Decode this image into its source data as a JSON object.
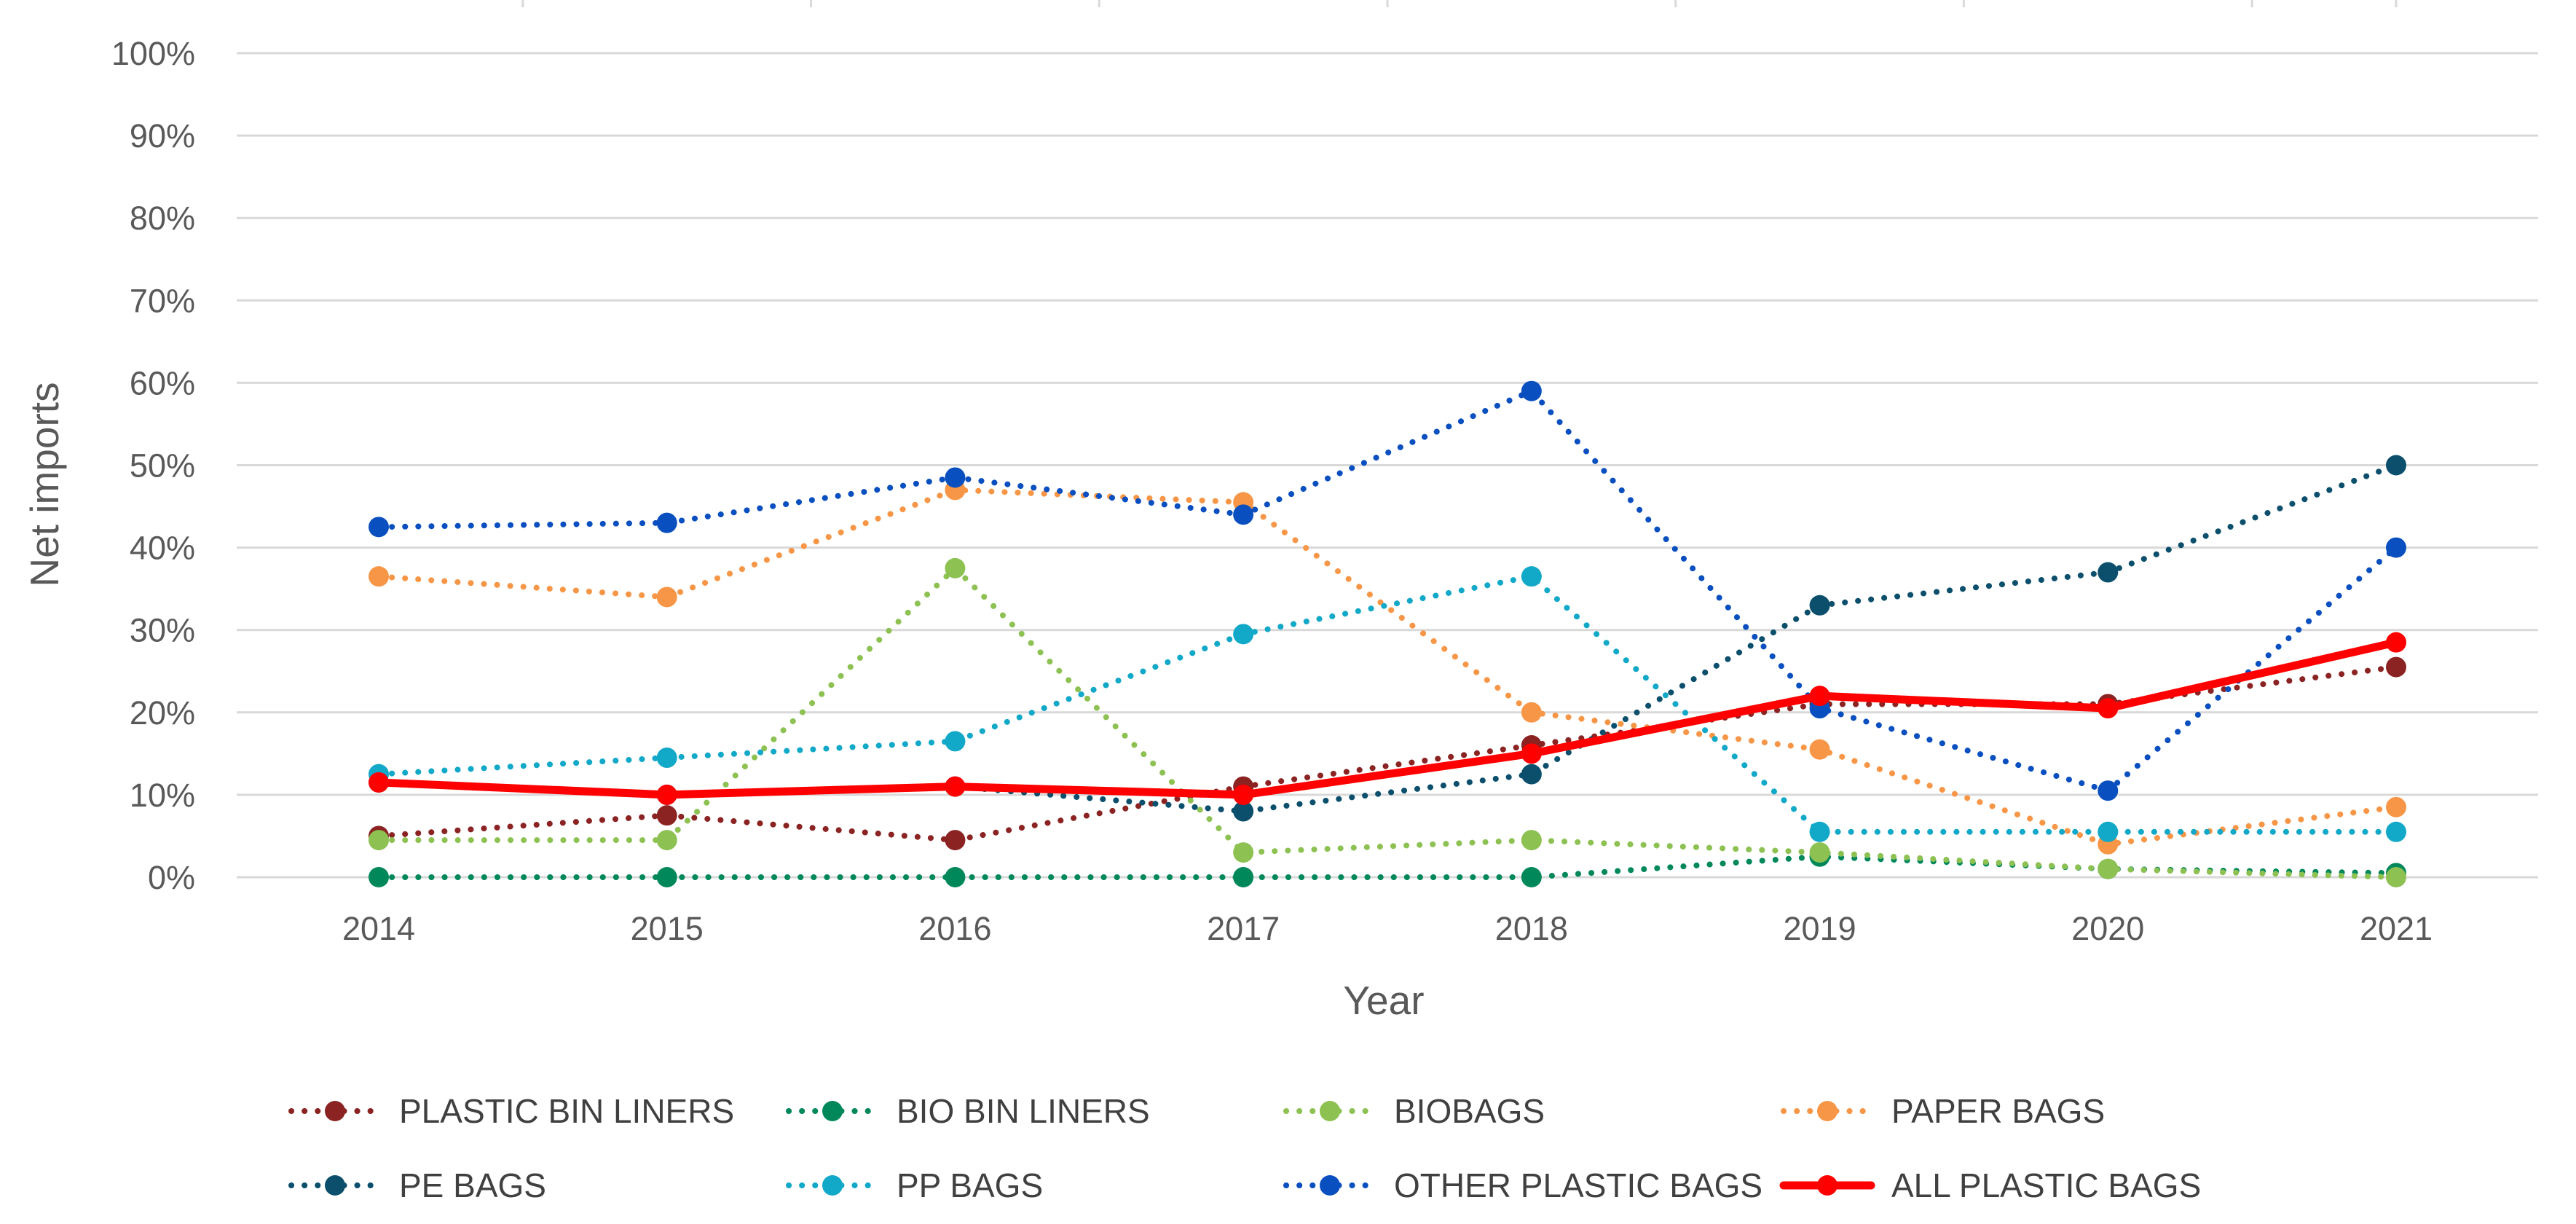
{
  "chart_data": {
    "type": "line",
    "title": "",
    "xlabel": "Year",
    "ylabel": "Net imports",
    "x": [
      "2014",
      "2015",
      "2016",
      "2017",
      "2018",
      "2019",
      "2020",
      "2021"
    ],
    "y_ticks": [
      "0%",
      "10%",
      "20%",
      "30%",
      "40%",
      "50%",
      "60%",
      "70%",
      "80%",
      "90%",
      "100%"
    ],
    "ylim": [
      0,
      100
    ],
    "y_unit": "%",
    "grid": "horizontal",
    "legend_position": "bottom",
    "series": [
      {
        "name": "PLASTIC BIN LINERS",
        "color": "#8B2323",
        "style": "dotted",
        "values": [
          5,
          7.5,
          4.5,
          11,
          16,
          21,
          21,
          25.5
        ]
      },
      {
        "name": "BIO BIN LINERS",
        "color": "#00875A",
        "style": "dotted",
        "values": [
          0,
          0,
          0,
          0,
          0,
          2.5,
          1,
          0.5
        ]
      },
      {
        "name": "BIOBAGS",
        "color": "#8DC152",
        "style": "dotted",
        "values": [
          4.5,
          4.5,
          37.5,
          3,
          4.5,
          3,
          1,
          0
        ]
      },
      {
        "name": "PAPER BAGS",
        "color": "#F79646",
        "style": "dotted",
        "values": [
          36.5,
          34,
          47,
          45.5,
          20,
          15.5,
          4,
          8.5
        ]
      },
      {
        "name": "PE BAGS",
        "color": "#0B4F6C",
        "style": "dotted",
        "values": [
          11.5,
          10,
          11,
          8,
          12.5,
          33,
          37,
          50
        ]
      },
      {
        "name": "PP BAGS",
        "color": "#12A8C8",
        "style": "dotted",
        "values": [
          12.5,
          14.5,
          16.5,
          29.5,
          36.5,
          5.5,
          5.5,
          5.5
        ]
      },
      {
        "name": "OTHER PLASTIC BAGS",
        "color": "#0A4FBF",
        "style": "dotted",
        "values": [
          42.5,
          43,
          48.5,
          44,
          59,
          20.5,
          10.5,
          40
        ]
      },
      {
        "name": "ALL PLASTIC BAGS",
        "color": "#FF0000",
        "style": "solid",
        "values": [
          11.5,
          10,
          11,
          10,
          15,
          22,
          20.5,
          28.5
        ]
      }
    ]
  }
}
